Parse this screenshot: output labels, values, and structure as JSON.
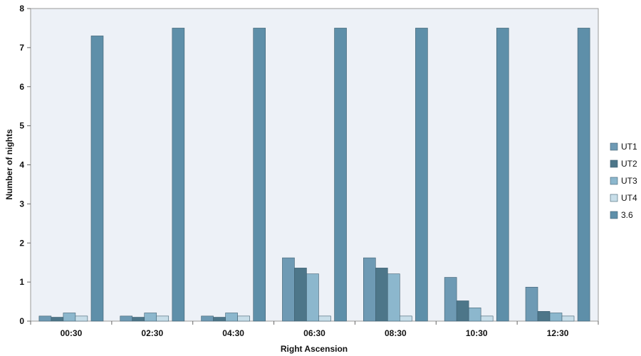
{
  "chart_data": {
    "type": "bar",
    "title": "",
    "xlabel": "Right Ascension",
    "ylabel": "Number of nights",
    "ylim": [
      0,
      8
    ],
    "yticks": [
      "0",
      "1",
      "2",
      "3",
      "4",
      "5",
      "6",
      "7",
      "8"
    ],
    "categories": [
      "00:30",
      "02:30",
      "04:30",
      "06:30",
      "08:30",
      "10:30",
      "12:30"
    ],
    "series": [
      {
        "name": "UT1",
        "color": "#6e9ab4",
        "values": [
          0.13,
          0.13,
          0.13,
          1.62,
          1.62,
          1.12,
          0.87
        ]
      },
      {
        "name": "UT2",
        "color": "#4d7689",
        "values": [
          0.1,
          0.1,
          0.1,
          1.36,
          1.36,
          0.52,
          0.25
        ]
      },
      {
        "name": "UT3",
        "color": "#8cb7cd",
        "values": [
          0.21,
          0.21,
          0.21,
          1.21,
          1.21,
          0.34,
          0.21
        ]
      },
      {
        "name": "UT4",
        "color": "#c8dee9",
        "values": [
          0.13,
          0.13,
          0.13,
          0.13,
          0.13,
          0.13,
          0.13
        ]
      },
      {
        "name": "3.6",
        "color": "#5e8fa9",
        "values": [
          7.3,
          7.5,
          7.5,
          7.5,
          7.5,
          7.5,
          7.5
        ]
      }
    ],
    "grid": false,
    "plot_background": "#edf1f7",
    "legend_position": "right"
  }
}
